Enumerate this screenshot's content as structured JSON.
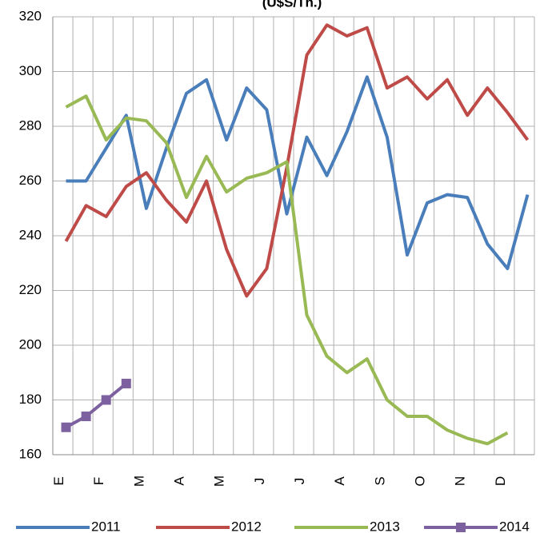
{
  "chart_data": {
    "type": "line",
    "title": "(U$S/Tn.)",
    "categories": [
      "E",
      null,
      "F",
      null,
      "M",
      null,
      "A",
      null,
      "M",
      null,
      "J",
      null,
      "J",
      null,
      "A",
      null,
      "S",
      null,
      "O",
      null,
      "N",
      null,
      "D",
      null
    ],
    "series": [
      {
        "name": "2011",
        "color": "#4a7ebb",
        "values": [
          260,
          260,
          272,
          284,
          250,
          272,
          292,
          297,
          275,
          294,
          286,
          248,
          276,
          262,
          278,
          298,
          276,
          233,
          252,
          255,
          254,
          237,
          228,
          255
        ]
      },
      {
        "name": "2012",
        "color": "#be4b48",
        "values": [
          238,
          251,
          247,
          258,
          263,
          253,
          245,
          260,
          235,
          218,
          228,
          265,
          306,
          317,
          313,
          316,
          294,
          298,
          290,
          297,
          284,
          294,
          285,
          275
        ]
      },
      {
        "name": "2013",
        "color": "#98b954",
        "values": [
          287,
          291,
          275,
          283,
          282,
          274,
          254,
          269,
          256,
          261,
          263,
          267,
          211,
          196,
          190,
          195,
          180,
          174,
          174,
          169,
          166,
          164,
          168,
          null
        ]
      },
      {
        "name": "2014",
        "color": "#7d60a0",
        "marker": "square",
        "values": [
          170,
          174,
          180,
          186,
          null,
          null,
          null,
          null,
          null,
          null,
          null,
          null,
          null,
          null,
          null,
          null,
          null,
          null,
          null,
          null,
          null,
          null,
          null,
          null
        ]
      }
    ],
    "ylim": [
      160,
      320
    ],
    "yticks": [
      160,
      180,
      200,
      220,
      240,
      260,
      280,
      300,
      320
    ],
    "grid": true,
    "legend": "bottom"
  }
}
